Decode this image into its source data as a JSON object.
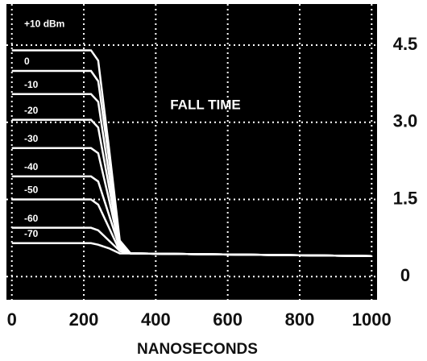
{
  "chart_data": {
    "type": "line",
    "annotation": "FALL TIME",
    "x_label": "NANOSECONDS",
    "x": [
      0,
      220,
      240,
      270,
      300,
      330,
      1000
    ],
    "xlim": [
      -15,
      1015
    ],
    "xticks": [
      0,
      200,
      400,
      600,
      800,
      1000
    ],
    "ylim": [
      -0.45,
      5.3
    ],
    "yticks": [
      0,
      1.5,
      {
        "value": 3,
        "label": "3.0"
      },
      4.5
    ],
    "grid": true,
    "background": "#000000",
    "series": [
      {
        "name": "+10 dBm",
        "color": "#ffffff",
        "values": [
          4.4,
          4.4,
          4.2,
          2.5,
          0.7,
          0.45,
          0.4
        ]
      },
      {
        "name": "0",
        "color": "#ffffff",
        "values": [
          4.0,
          4.0,
          3.8,
          2.3,
          0.65,
          0.45,
          0.4
        ]
      },
      {
        "name": "-10",
        "color": "#ffffff",
        "values": [
          3.55,
          3.55,
          3.4,
          2.0,
          0.6,
          0.45,
          0.4
        ]
      },
      {
        "name": "-20",
        "color": "#ffffff",
        "values": [
          3.05,
          3.05,
          2.9,
          1.75,
          0.6,
          0.45,
          0.4
        ]
      },
      {
        "name": "-30",
        "color": "#ffffff",
        "values": [
          2.5,
          2.5,
          2.4,
          1.5,
          0.55,
          0.45,
          0.4
        ]
      },
      {
        "name": "-40",
        "color": "#ffffff",
        "values": [
          1.95,
          1.95,
          1.85,
          1.2,
          0.55,
          0.45,
          0.4
        ]
      },
      {
        "name": "-50",
        "color": "#ffffff",
        "values": [
          1.5,
          1.5,
          1.4,
          0.95,
          0.5,
          0.45,
          0.4
        ]
      },
      {
        "name": "-60",
        "color": "#ffffff",
        "values": [
          0.95,
          0.95,
          0.9,
          0.7,
          0.5,
          0.45,
          0.4
        ]
      },
      {
        "name": "-70",
        "color": "#ffffff",
        "values": [
          0.65,
          0.65,
          0.62,
          0.55,
          0.45,
          0.45,
          0.4
        ]
      }
    ]
  }
}
